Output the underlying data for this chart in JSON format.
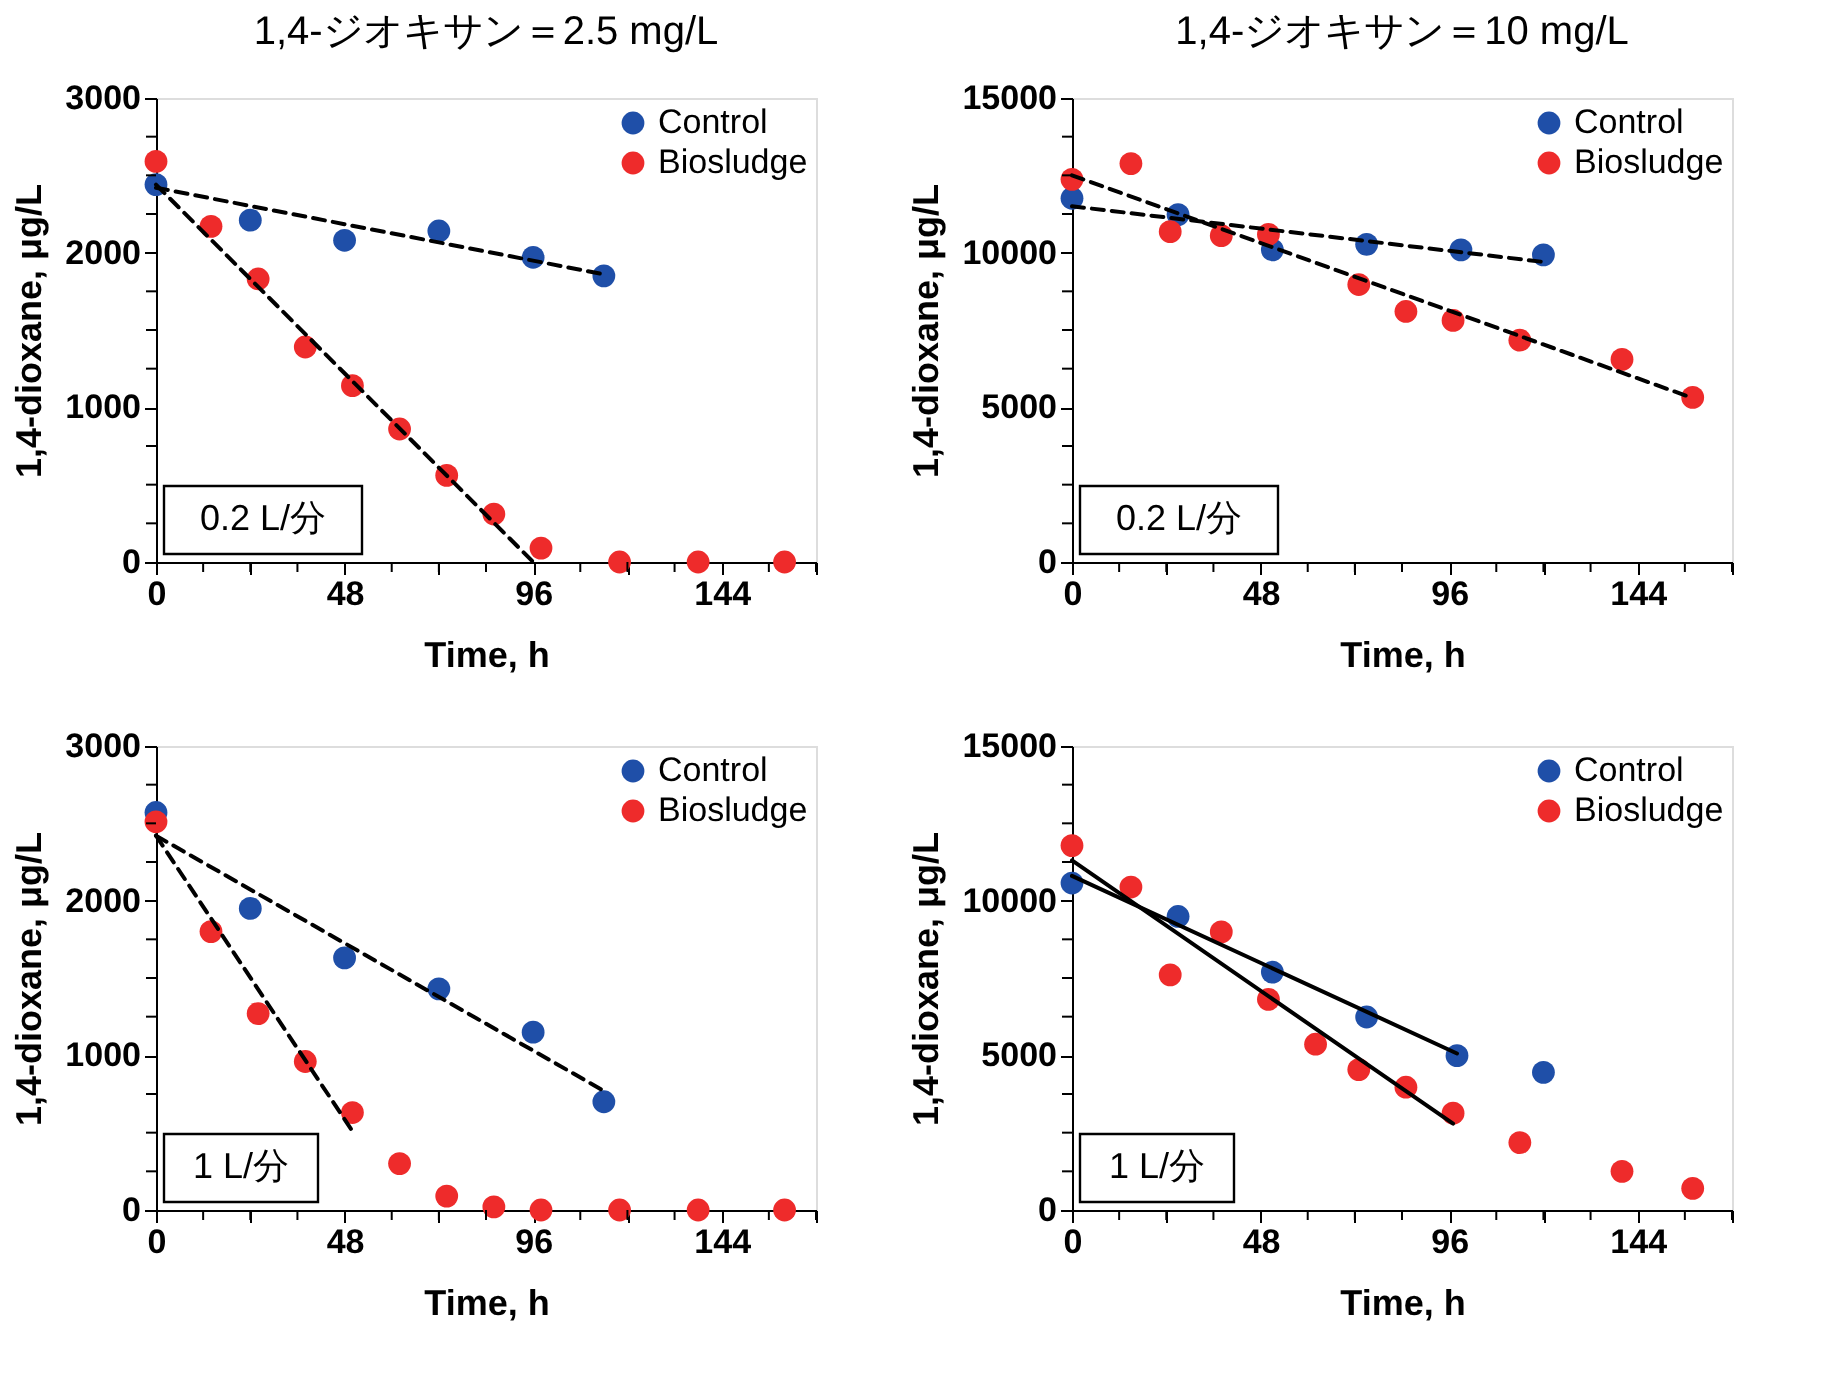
{
  "chart_data": [
    {
      "type": "scatter",
      "title": "1,4-ジオキサン＝2.5 mg/L",
      "xlabel": "Time, h",
      "ylabel": "1,4-dioxane, μg/L",
      "xlim": [
        0,
        168
      ],
      "xticks": [
        0,
        {
          "value": 12,
          "label": null
        },
        {
          "value": 24,
          "label": null
        },
        {
          "value": 36,
          "label": null
        },
        48,
        {
          "value": 60,
          "label": null
        },
        {
          "value": 72,
          "label": null
        },
        {
          "value": 84,
          "label": null
        },
        96,
        {
          "value": 108,
          "label": null
        },
        {
          "value": 120,
          "label": null
        },
        {
          "value": 132,
          "label": null
        },
        144,
        {
          "value": 156,
          "label": null
        },
        {
          "value": 168,
          "label": null
        }
      ],
      "ylim": [
        0,
        3000
      ],
      "yticks": [
        0,
        {
          "value": 250,
          "label": null
        },
        {
          "value": 500,
          "label": null
        },
        {
          "value": 750,
          "label": null
        },
        1000,
        {
          "value": 1250,
          "label": null
        },
        {
          "value": 1500,
          "label": null
        },
        {
          "value": 1750,
          "label": null
        },
        2000,
        {
          "value": 2250,
          "label": null
        },
        {
          "value": 2500,
          "label": null
        },
        {
          "value": 2750,
          "label": null
        },
        3000
      ],
      "grid": false,
      "legend": "top right",
      "marker": "circle",
      "annotations": [
        "0.2 L/分"
      ],
      "series": [
        {
          "name": "Control",
          "color": "#1f4fa8",
          "x": [
            0,
            24,
            48,
            72,
            96,
            114
          ],
          "values": [
            2440,
            2210,
            2080,
            2140,
            1970,
            1850
          ]
        },
        {
          "name": "Biosludge",
          "color": "#ee2b2b",
          "x": [
            0,
            14,
            26,
            38,
            50,
            62,
            74,
            86,
            98,
            118,
            138,
            160
          ],
          "values": [
            2590,
            2170,
            1830,
            1390,
            1140,
            860,
            560,
            310,
            90,
            0,
            0,
            0
          ]
        },
        {
          "type": "line",
          "color": "#000000",
          "line_style": "dashed",
          "marker": "none",
          "x": [
            0,
            114
          ],
          "values": [
            2420,
            1860
          ]
        },
        {
          "type": "line",
          "color": "#000000",
          "line_style": "dashed",
          "marker": "none",
          "x": [
            0,
            96
          ],
          "values": [
            2440,
            0
          ]
        }
      ]
    },
    {
      "type": "scatter",
      "title": "1,4-ジオキサン＝10 mg/L",
      "xlabel": "Time, h",
      "ylabel": "1,4-dioxane, μg/L",
      "xlim": [
        0,
        168
      ],
      "xticks": [
        0,
        {
          "value": 12,
          "label": null
        },
        {
          "value": 24,
          "label": null
        },
        {
          "value": 36,
          "label": null
        },
        48,
        {
          "value": 60,
          "label": null
        },
        {
          "value": 72,
          "label": null
        },
        {
          "value": 84,
          "label": null
        },
        96,
        {
          "value": 108,
          "label": null
        },
        {
          "value": 120,
          "label": null
        },
        {
          "value": 132,
          "label": null
        },
        144,
        {
          "value": 156,
          "label": null
        },
        {
          "value": 168,
          "label": null
        }
      ],
      "ylim": [
        0,
        15000
      ],
      "yticks": [
        0,
        {
          "value": 1250,
          "label": null
        },
        {
          "value": 2500,
          "label": null
        },
        {
          "value": 3750,
          "label": null
        },
        5000,
        {
          "value": 6250,
          "label": null
        },
        {
          "value": 7500,
          "label": null
        },
        {
          "value": 8750,
          "label": null
        },
        10000,
        {
          "value": 11250,
          "label": null
        },
        {
          "value": 12500,
          "label": null
        },
        {
          "value": 13750,
          "label": null
        },
        15000
      ],
      "grid": false,
      "legend": "top right",
      "marker": "circle",
      "annotations": [
        "0.2 L/分"
      ],
      "series": [
        {
          "name": "Control",
          "color": "#1f4fa8",
          "x": [
            0,
            27,
            51,
            75,
            99,
            120
          ],
          "values": [
            11760,
            11230,
            10090,
            10270,
            10090,
            9930
          ]
        },
        {
          "name": "Biosludge",
          "color": "#ee2b2b",
          "x": [
            0,
            15,
            25,
            38,
            50,
            73,
            85,
            97,
            114,
            140,
            158
          ],
          "values": [
            12370,
            12880,
            10680,
            10550,
            10590,
            8970,
            8100,
            7810,
            7170,
            6550,
            5320
          ]
        },
        {
          "type": "line",
          "color": "#000000",
          "line_style": "dashed",
          "marker": "none",
          "x": [
            0,
            120
          ],
          "values": [
            11500,
            9700
          ]
        },
        {
          "type": "line",
          "color": "#000000",
          "line_style": "dashed",
          "marker": "none",
          "x": [
            0,
            158
          ],
          "values": [
            12500,
            5300
          ]
        }
      ]
    },
    {
      "type": "scatter",
      "xlabel": "Time, h",
      "ylabel": "1,4-dioxane, μg/L",
      "xlim": [
        0,
        168
      ],
      "xticks": [
        0,
        {
          "value": 12,
          "label": null
        },
        {
          "value": 24,
          "label": null
        },
        {
          "value": 36,
          "label": null
        },
        48,
        {
          "value": 60,
          "label": null
        },
        {
          "value": 72,
          "label": null
        },
        {
          "value": 84,
          "label": null
        },
        96,
        {
          "value": 108,
          "label": null
        },
        {
          "value": 120,
          "label": null
        },
        {
          "value": 132,
          "label": null
        },
        144,
        {
          "value": 156,
          "label": null
        },
        {
          "value": 168,
          "label": null
        }
      ],
      "ylim": [
        0,
        3000
      ],
      "yticks": [
        0,
        {
          "value": 250,
          "label": null
        },
        {
          "value": 500,
          "label": null
        },
        {
          "value": 750,
          "label": null
        },
        1000,
        {
          "value": 1250,
          "label": null
        },
        {
          "value": 1500,
          "label": null
        },
        {
          "value": 1750,
          "label": null
        },
        2000,
        {
          "value": 2250,
          "label": null
        },
        {
          "value": 2500,
          "label": null
        },
        {
          "value": 2750,
          "label": null
        },
        3000
      ],
      "grid": false,
      "legend": "top right",
      "marker": "circle",
      "annotations": [
        "1 L/分"
      ],
      "series": [
        {
          "name": "Control",
          "color": "#1f4fa8",
          "x": [
            0,
            24,
            48,
            72,
            96,
            114
          ],
          "values": [
            2570,
            1950,
            1630,
            1430,
            1150,
            700
          ]
        },
        {
          "name": "Biosludge",
          "color": "#ee2b2b",
          "x": [
            0,
            14,
            26,
            38,
            50,
            62,
            74,
            86,
            98,
            118,
            138,
            160
          ],
          "values": [
            2510,
            1800,
            1270,
            960,
            630,
            300,
            90,
            20,
            0,
            0,
            0,
            0
          ]
        },
        {
          "type": "line",
          "color": "#000000",
          "line_style": "dashed",
          "marker": "none",
          "x": [
            0,
            114
          ],
          "values": [
            2420,
            770
          ]
        },
        {
          "type": "line",
          "color": "#000000",
          "line_style": "dashed",
          "marker": "none",
          "x": [
            0,
            50
          ],
          "values": [
            2420,
            510
          ]
        }
      ]
    },
    {
      "type": "scatter",
      "xlabel": "Time, h",
      "ylabel": "1,4-dioxane, μg/L",
      "xlim": [
        0,
        168
      ],
      "xticks": [
        0,
        {
          "value": 12,
          "label": null
        },
        {
          "value": 24,
          "label": null
        },
        {
          "value": 36,
          "label": null
        },
        48,
        {
          "value": 60,
          "label": null
        },
        {
          "value": 72,
          "label": null
        },
        {
          "value": 84,
          "label": null
        },
        96,
        {
          "value": 108,
          "label": null
        },
        {
          "value": 120,
          "label": null
        },
        {
          "value": 132,
          "label": null
        },
        144,
        {
          "value": 156,
          "label": null
        },
        {
          "value": 168,
          "label": null
        }
      ],
      "ylim": [
        0,
        15000
      ],
      "yticks": [
        0,
        {
          "value": 1250,
          "label": null
        },
        {
          "value": 2500,
          "label": null
        },
        {
          "value": 3750,
          "label": null
        },
        5000,
        {
          "value": 6250,
          "label": null
        },
        {
          "value": 7500,
          "label": null
        },
        {
          "value": 8750,
          "label": null
        },
        10000,
        {
          "value": 11250,
          "label": null
        },
        {
          "value": 12500,
          "label": null
        },
        {
          "value": 13750,
          "label": null
        },
        15000
      ],
      "grid": false,
      "legend": "top right",
      "marker": "circle",
      "annotations": [
        "1 L/分"
      ],
      "series": [
        {
          "name": "Control",
          "color": "#1f4fa8",
          "x": [
            0,
            27,
            51,
            75,
            98,
            120
          ],
          "values": [
            10570,
            9490,
            7690,
            6240,
            4990,
            4450
          ]
        },
        {
          "name": "Biosludge",
          "color": "#ee2b2b",
          "x": [
            0,
            15,
            25,
            38,
            50,
            62,
            73,
            85,
            97,
            114,
            140,
            158
          ],
          "values": [
            11780,
            10440,
            7600,
            8990,
            6810,
            5360,
            4540,
            3970,
            3130,
            2180,
            1250,
            700
          ]
        },
        {
          "type": "line",
          "color": "#000000",
          "line_style": "solid",
          "marker": "none",
          "x": [
            0,
            98
          ],
          "values": [
            10800,
            5060
          ]
        },
        {
          "type": "line",
          "color": "#000000",
          "line_style": "solid",
          "marker": "none",
          "x": [
            0,
            97
          ],
          "values": [
            11300,
            2790
          ]
        }
      ]
    }
  ]
}
